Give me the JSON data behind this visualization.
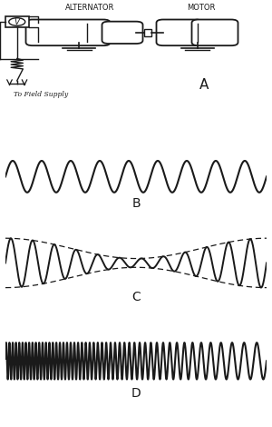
{
  "bg_color": "#ffffff",
  "line_color": "#1a1a1a",
  "label_A": "A",
  "label_B": "B",
  "label_C": "C",
  "label_D": "D",
  "alternator_label": "ALTERNATOR",
  "motor_label": "MOTOR",
  "field_label": "To Field Supply",
  "wave_B_cycles": 9.0,
  "wave_B_amplitude": 1.0,
  "wave_C_carrier_cycles": 12.0,
  "wave_C_mod_cycles": 0.5,
  "wave_C_amp_max": 1.4,
  "wave_C_amp_min": 0.25,
  "wave_D_f0": 5.0,
  "wave_D_delta_f": 3.0,
  "wave_D_mod_slow": 0.5
}
